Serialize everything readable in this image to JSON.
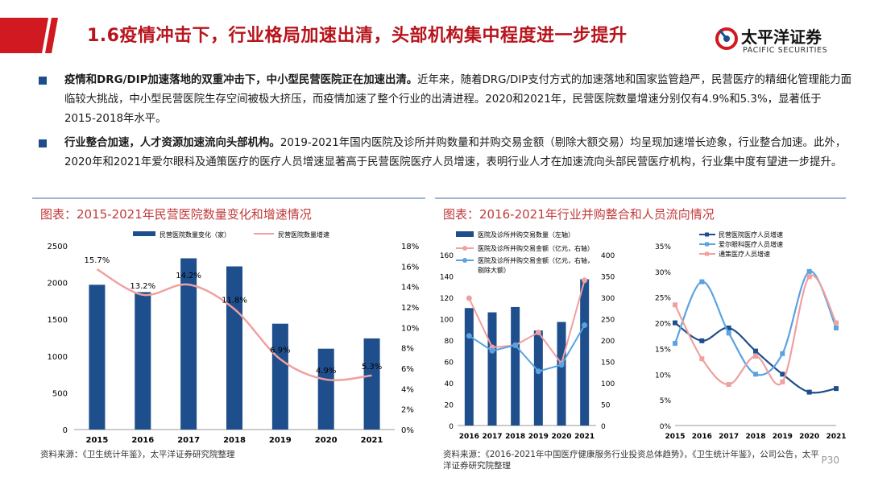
{
  "header": {
    "title": "1.6疫情冲击下，行业格局加速出清，头部机构集中程度进一步提升",
    "logo_cn": "太平洋证券",
    "logo_en": "PACIFIC SECURITIES"
  },
  "bullets": [
    {
      "bold": "疫情和DRG/DIP加速落地的双重冲击下，中小型民营医院正在加速出清。",
      "text": "近年来，随着DRG/DIP支付方式的加速落地和国家监管趋严，民营医疗的精细化管理能力面临较大挑战，中小型民营医院生存空间被极大挤压，而疫情加速了整个行业的出清进程。2020和2021年，民营医院数量增速分别仅有4.9%和5.3%，显著低于2015-2018年水平。"
    },
    {
      "bold": "行业整合加速，人才资源加速流向头部机构。",
      "text": "2019-2021年国内医院及诊所并购数量和并购交易金额（剔除大额交易）均呈现加速增长迹象，行业整合加速。此外，2020年和2021年爱尔眼科及通策医疗的医疗人员增速显著高于民营医院医疗人员增速，表明行业人才在加速流向头部民营医疗机构，行业集中度有望进一步提升。"
    }
  ],
  "panels": {
    "left_title": "图表：2015-2021年民营医院数量变化和增速情况",
    "right_title": "图表：2016-2021年行业并购整合和人员流向情况",
    "left_source": "资料来源：《卫生统计年鉴》，太平洋证券研究院整理",
    "right_source": "资料来源：《2016-2021年中国医疗健康服务行业投资总体趋势》，《卫生统计年鉴》，公司公告，太平洋证券研究院整理"
  },
  "page_number": "P30",
  "colors": {
    "bar": "#1f4e8c",
    "pink": "#f0a0a0",
    "light_blue": "#5ba3e0",
    "dark_blue": "#1f4e8c",
    "title_red": "#b8141c"
  },
  "chart_data": [
    {
      "type": "bar",
      "categories": [
        "2015",
        "2016",
        "2017",
        "2018",
        "2019",
        "2020",
        "2021"
      ],
      "series": [
        {
          "name": "民营医院数量变化（家）",
          "axis": "left",
          "type": "bar",
          "values": [
            1970,
            1870,
            2330,
            2220,
            1440,
            1100,
            1240
          ]
        },
        {
          "name": "民营医院数量增速",
          "axis": "right",
          "type": "line",
          "values": [
            15.7,
            13.2,
            14.2,
            11.8,
            6.9,
            4.9,
            5.3
          ],
          "labels": [
            "15.7%",
            "13.2%",
            "14.2%",
            "11.8%",
            "6.9%",
            "4.9%",
            "5.3%"
          ]
        }
      ],
      "y_left": {
        "min": 0,
        "max": 2500,
        "ticks": [
          "0",
          "500",
          "1000",
          "1500",
          "2000",
          "2500"
        ]
      },
      "y_right": {
        "min": 0,
        "max": 18,
        "ticks": [
          "0%",
          "2%",
          "4%",
          "6%",
          "8%",
          "10%",
          "12%",
          "14%",
          "16%",
          "18%"
        ]
      }
    },
    {
      "type": "bar",
      "categories": [
        "2016",
        "2017",
        "2018",
        "2019",
        "2020",
        "2021"
      ],
      "series": [
        {
          "name": "医院及诊所并购交易数量（左轴）",
          "axis": "left",
          "type": "bar",
          "values": [
            110,
            106,
            111,
            89,
            97,
            137
          ]
        },
        {
          "name": "医院及诊所并购交易金额（亿元，右轴）",
          "axis": "right",
          "type": "line",
          "values": [
            298,
            183,
            188,
            218,
            145,
            340
          ]
        },
        {
          "name": "医院及诊所并购交易金额（亿元，右轴，剔除大额）",
          "axis": "right",
          "type": "line",
          "values": [
            210,
            175,
            188,
            127,
            142,
            235
          ]
        }
      ],
      "y_left": {
        "min": 0,
        "max": 160,
        "ticks": [
          "0",
          "20",
          "40",
          "60",
          "80",
          "100",
          "120",
          "140",
          "160"
        ]
      },
      "y_right": {
        "min": 0,
        "max": 400,
        "ticks": [
          "0",
          "50",
          "100",
          "150",
          "200",
          "250",
          "300",
          "350",
          "400"
        ]
      }
    },
    {
      "type": "line",
      "categories": [
        "2015",
        "2016",
        "2017",
        "2018",
        "2019",
        "2020",
        "2021"
      ],
      "series": [
        {
          "name": "民营医院医疗人员增速",
          "values": [
            20,
            16.5,
            19,
            14.5,
            10,
            6.5,
            7.2
          ]
        },
        {
          "name": "爱尔眼科医疗人员增速",
          "values": [
            16,
            28,
            18,
            10,
            14,
            30,
            19
          ]
        },
        {
          "name": "通策医疗人员增速",
          "values": [
            23.5,
            13,
            8,
            13.5,
            8.5,
            29,
            20
          ]
        }
      ],
      "y": {
        "min": 0,
        "max": 35,
        "ticks": [
          "0%",
          "5%",
          "10%",
          "15%",
          "20%",
          "25%",
          "30%",
          "35%"
        ]
      }
    }
  ]
}
